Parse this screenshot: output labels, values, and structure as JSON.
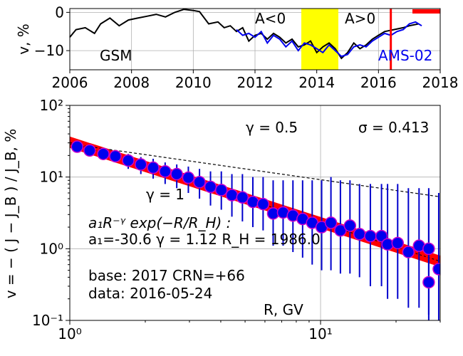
{
  "chart_data": [
    {
      "type": "line",
      "panel": "top",
      "ylabel": "v, %",
      "xlim": [
        2006,
        2018
      ],
      "ylim": [
        -15,
        1
      ],
      "x_ticks": [
        2006,
        2008,
        2010,
        2012,
        2014,
        2016,
        2018
      ],
      "y_ticks": [
        0,
        -10
      ],
      "grid": true,
      "series": [
        {
          "name": "GSM",
          "color": "#000000",
          "points": [
            [
              2006.0,
              -6.5
            ],
            [
              2006.2,
              -4.5
            ],
            [
              2006.5,
              -4.0
            ],
            [
              2006.8,
              -5.5
            ],
            [
              2007.0,
              -3.0
            ],
            [
              2007.3,
              -1.5
            ],
            [
              2007.6,
              -3.5
            ],
            [
              2007.9,
              -2.0
            ],
            [
              2008.2,
              -1.5
            ],
            [
              2008.5,
              -1.0
            ],
            [
              2008.8,
              -0.5
            ],
            [
              2009.1,
              -1.2
            ],
            [
              2009.4,
              0.0
            ],
            [
              2009.7,
              0.8
            ],
            [
              2010.0,
              0.5
            ],
            [
              2010.2,
              0.2
            ],
            [
              2010.5,
              -3.0
            ],
            [
              2010.8,
              -2.5
            ],
            [
              2011.0,
              -4.0
            ],
            [
              2011.2,
              -3.5
            ],
            [
              2011.4,
              -5.0
            ],
            [
              2011.6,
              -4.0
            ],
            [
              2011.8,
              -7.5
            ],
            [
              2012.0,
              -6.0
            ],
            [
              2012.2,
              -5.5
            ],
            [
              2012.4,
              -7.0
            ],
            [
              2012.6,
              -5.5
            ],
            [
              2012.8,
              -6.5
            ],
            [
              2013.0,
              -8.0
            ],
            [
              2013.2,
              -7.0
            ],
            [
              2013.4,
              -9.0
            ],
            [
              2013.6,
              -8.5
            ],
            [
              2013.8,
              -7.5
            ],
            [
              2014.0,
              -10.5
            ],
            [
              2014.2,
              -9.0
            ],
            [
              2014.4,
              -8.0
            ],
            [
              2014.6,
              -9.5
            ],
            [
              2014.8,
              -12.0
            ],
            [
              2015.0,
              -10.5
            ],
            [
              2015.2,
              -8.0
            ],
            [
              2015.4,
              -9.5
            ],
            [
              2015.6,
              -8.5
            ],
            [
              2015.8,
              -7.0
            ],
            [
              2016.0,
              -6.0
            ],
            [
              2016.2,
              -5.0
            ],
            [
              2016.5,
              -4.5
            ],
            [
              2016.8,
              -4.0
            ],
            [
              2017.0,
              -3.5
            ],
            [
              2017.3,
              -3.0
            ]
          ]
        },
        {
          "name": "AMS-02",
          "color": "#0000ee",
          "points": [
            [
              2011.4,
              -4.5
            ],
            [
              2011.6,
              -6.0
            ],
            [
              2011.8,
              -5.5
            ],
            [
              2012.0,
              -6.5
            ],
            [
              2012.2,
              -5.0
            ],
            [
              2012.4,
              -8.0
            ],
            [
              2012.6,
              -6.0
            ],
            [
              2012.8,
              -7.0
            ],
            [
              2013.0,
              -9.0
            ],
            [
              2013.2,
              -7.5
            ],
            [
              2013.4,
              -10.0
            ],
            [
              2013.6,
              -8.0
            ],
            [
              2013.8,
              -8.5
            ],
            [
              2014.0,
              -9.5
            ],
            [
              2014.2,
              -10.5
            ],
            [
              2014.4,
              -8.5
            ],
            [
              2014.6,
              -10.0
            ],
            [
              2014.8,
              -11.5
            ],
            [
              2015.0,
              -11.0
            ],
            [
              2015.2,
              -9.0
            ],
            [
              2015.4,
              -8.5
            ],
            [
              2015.6,
              -9.0
            ],
            [
              2015.8,
              -7.5
            ],
            [
              2016.0,
              -6.5
            ],
            [
              2016.2,
              -5.5
            ],
            [
              2016.4,
              -6.0
            ],
            [
              2016.6,
              -5.0
            ],
            [
              2016.8,
              -4.5
            ],
            [
              2017.0,
              -3.0
            ],
            [
              2017.2,
              -2.5
            ],
            [
              2017.4,
              -3.5
            ]
          ]
        }
      ],
      "annotations": {
        "gsm_label": "GSM",
        "ams_label": "AMS-02",
        "a_neg": "A<0",
        "a_pos": "A>0"
      },
      "yellow_band": [
        2013.5,
        2014.7
      ],
      "red_vline": 2016.4,
      "red_bar": [
        2017.1,
        2018.0
      ]
    },
    {
      "type": "scatter",
      "panel": "bottom",
      "xlabel": "R, GV",
      "ylabel": "v = − ( J − J_B ) / J_B, %",
      "xscale": "log",
      "yscale": "log",
      "xlim": [
        1,
        30
      ],
      "ylim": [
        0.1,
        100
      ],
      "grid": true,
      "x_tick_labels": [
        "10⁰",
        "10¹"
      ],
      "y_tick_labels": [
        "10⁻¹",
        "10⁰",
        "10¹",
        "10²"
      ],
      "points": [
        {
          "x": 1.07,
          "y": 26.5,
          "lo": 24,
          "hi": 29
        },
        {
          "x": 1.2,
          "y": 23.5,
          "lo": 21,
          "hi": 26
        },
        {
          "x": 1.36,
          "y": 21,
          "lo": 18,
          "hi": 24
        },
        {
          "x": 1.52,
          "y": 19.5,
          "lo": 16,
          "hi": 23
        },
        {
          "x": 1.71,
          "y": 17,
          "lo": 13,
          "hi": 21
        },
        {
          "x": 1.92,
          "y": 15,
          "lo": 11,
          "hi": 19
        },
        {
          "x": 2.15,
          "y": 13.5,
          "lo": 9.5,
          "hi": 18
        },
        {
          "x": 2.4,
          "y": 12,
          "lo": 8,
          "hi": 16
        },
        {
          "x": 2.67,
          "y": 11,
          "lo": 7,
          "hi": 15
        },
        {
          "x": 2.97,
          "y": 9.8,
          "lo": 6,
          "hi": 14
        },
        {
          "x": 3.29,
          "y": 8.5,
          "lo": 5,
          "hi": 13
        },
        {
          "x": 3.64,
          "y": 7.3,
          "lo": 4,
          "hi": 12
        },
        {
          "x": 4.02,
          "y": 6.6,
          "lo": 3.5,
          "hi": 12
        },
        {
          "x": 4.43,
          "y": 5.6,
          "lo": 2.8,
          "hi": 11
        },
        {
          "x": 4.88,
          "y": 5.2,
          "lo": 2.4,
          "hi": 11
        },
        {
          "x": 5.37,
          "y": 4.5,
          "lo": 2,
          "hi": 10
        },
        {
          "x": 5.9,
          "y": 4.2,
          "lo": 1.8,
          "hi": 10
        },
        {
          "x": 6.47,
          "y": 3.1,
          "lo": 1.1,
          "hi": 9
        },
        {
          "x": 7.09,
          "y": 3.2,
          "lo": 1.1,
          "hi": 9
        },
        {
          "x": 7.76,
          "y": 2.9,
          "lo": 0.9,
          "hi": 9
        },
        {
          "x": 8.48,
          "y": 2.6,
          "lo": 0.75,
          "hi": 9
        },
        {
          "x": 9.26,
          "y": 2.3,
          "lo": 0.6,
          "hi": 9
        },
        {
          "x": 10.1,
          "y": 2.0,
          "lo": 0.5,
          "hi": 9
        },
        {
          "x": 11.0,
          "y": 2.3,
          "lo": 0.5,
          "hi": 10
        },
        {
          "x": 12.0,
          "y": 1.8,
          "lo": 0.45,
          "hi": 9
        },
        {
          "x": 13.1,
          "y": 2.1,
          "lo": 0.45,
          "hi": 9
        },
        {
          "x": 14.3,
          "y": 1.6,
          "lo": 0.4,
          "hi": 8
        },
        {
          "x": 15.8,
          "y": 1.5,
          "lo": 0.3,
          "hi": 8
        },
        {
          "x": 17.5,
          "y": 1.5,
          "lo": 0.3,
          "hi": 8
        },
        {
          "x": 18.5,
          "y": 1.15,
          "lo": 0.2,
          "hi": 8
        },
        {
          "x": 20.3,
          "y": 1.2,
          "lo": 0.2,
          "hi": 8
        },
        {
          "x": 22.4,
          "y": 0.9,
          "lo": 0.15,
          "hi": 7
        },
        {
          "x": 24.7,
          "y": 1.1,
          "lo": 0.15,
          "hi": 7
        },
        {
          "x": 27.0,
          "y": 1.0,
          "lo": 0.12,
          "hi": 7
        },
        {
          "x": 27.0,
          "y": 0.34,
          "lo": 0.1,
          "hi": 6
        },
        {
          "x": 29.6,
          "y": 0.52,
          "lo": 0.1,
          "hi": 6
        }
      ],
      "fit": {
        "a1": -30.6,
        "gamma": 1.12,
        "RH": 1986.0
      },
      "ref_line_gamma": 0.5,
      "annotations": {
        "gamma_half": "γ = 0.5",
        "sigma": "σ = 0.413",
        "gamma_one": "γ = 1",
        "formula": "a₁R⁻ᵞ exp(−R/R_H) :",
        "fit_params": "a₁=-30.6  γ = 1.12  R_H = 1986.0",
        "base": "base: 2017   CRN=+66",
        "date": "data: 2016-05-24"
      }
    }
  ],
  "colors": {
    "band": "#ff0000",
    "marker_fill": "#0000ee",
    "marker_edge": "#cc00cc",
    "errorbar": "#0000cc",
    "highlight": "#ffff00"
  }
}
